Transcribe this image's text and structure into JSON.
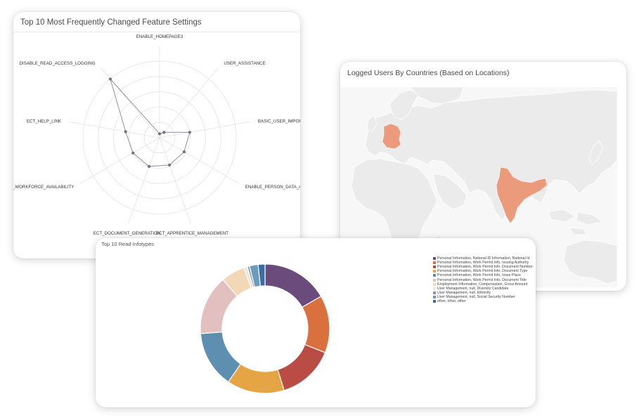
{
  "radar_card": {
    "title": "Top 10 Most Frequently Changed Feature Settings",
    "axes": [
      "ENABLE_HOMEPAGE3",
      "USER_ASSISTANCE",
      "BASIC_USER_IMPORT...",
      "ENABLE_PERSON_DATA_AUDI",
      "ECT_APPRENTICE_MANAGEMENT",
      "ECT_DOCUMENT_GENERATION",
      "ECT_WORKFORCE_AVAILABILITY",
      "ECT_HELP_LINK",
      "DISABLE_READ_ACCESS_LOGGING"
    ]
  },
  "chart_data": [
    {
      "type": "radar",
      "title": "Top 10 Most Frequently Changed Feature Settings",
      "categories": [
        "ENABLE_HOMEPAGE3",
        "USER_ASSISTANCE",
        "BASIC_USER_IMPORT...",
        "ENABLE_PERSON_DATA_AUDI",
        "ECT_APPRENTICE_MANAGEMENT",
        "ECT_DOCUMENT_GENERATION",
        "ECT_WORKFORCE_AVAILABILITY",
        "ECT_HELP_LINK",
        "DISABLE_READ_ACCESS_LOGGING"
      ],
      "series": [
        {
          "values": [
            0.05,
            0.09,
            0.4,
            0.37,
            0.38,
            0.4,
            0.4,
            0.45,
            1.0
          ]
        }
      ],
      "rings": 5,
      "color": "#6f6f86"
    },
    {
      "type": "pie",
      "title": "Top 10 Read Infotypes",
      "donut": true,
      "legend_position": "right",
      "labels": [
        "Personal Information, National ID Information, National Id",
        "Personal Information, Work Permit Info, Issuing Authority",
        "Personal Information, Work Permit Info, Document Number",
        "Personal Information, Work Permit Info, Document Type",
        "Personal Information, Work Permit Info, Issue Place",
        "Personal Information, Work Permit Info, Document Title",
        "Employment Information, Compensation, Gross Amount",
        "User Management, null, Diversity Candidate",
        "User Management, null, Ethnicity",
        "User Management, null, Social Security Number",
        "other, other, other"
      ],
      "values": [
        15.5,
        13.4,
        13.2,
        13.4,
        13.2,
        13.9,
        5.6,
        0.8,
        0.5,
        2.0,
        1.6
      ],
      "colors": [
        "#6b4a7c",
        "#d9703e",
        "#b94c44",
        "#e6a545",
        "#5e8fb0",
        "#e3c0c0",
        "#f3d8b8",
        "#e8e6e0",
        "#8c94a8",
        "#6b9bbf",
        "#3a6ea0"
      ]
    }
  ],
  "map_card": {
    "title": "Logged Users By Countries (Based on Locations)",
    "highlighted_countries": [
      "Germany",
      "India"
    ],
    "highlight_color": "#eb9a7c",
    "land_color": "#ebebeb",
    "sea_color": "#f7f7f7"
  },
  "pie_card": {
    "title": "Top 10 Read Infotypes"
  }
}
